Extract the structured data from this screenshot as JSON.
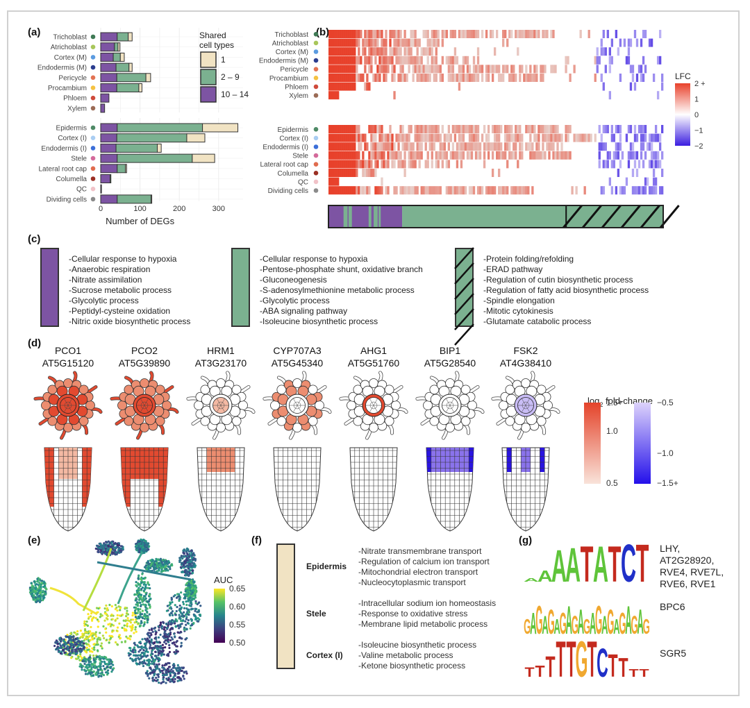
{
  "panel_labels": {
    "a": "(a)",
    "b": "(b)",
    "c": "(c)",
    "d": "(d)",
    "e": "(e)",
    "f": "(f)",
    "g": "(g)"
  },
  "chart_data": [
    {
      "id": "a",
      "type": "bar",
      "orientation": "horizontal",
      "stacked": true,
      "xlabel": "Number of DEGs",
      "xlim": [
        0,
        360
      ],
      "xticks": [
        0,
        100,
        200,
        300
      ],
      "grid": true,
      "legend": {
        "title": "Shared cell types",
        "position": "top-right",
        "entries": [
          {
            "name": "1",
            "color": "#f1e3c3"
          },
          {
            "name": "2 – 9",
            "color": "#7bb190"
          },
          {
            "name": "10 – 14",
            "color": "#7d54a3"
          }
        ]
      },
      "groups": [
        {
          "name": "upper",
          "categories": [
            "Trichoblast",
            "Atrichoblast",
            "Cortex (M)",
            "Endodermis (M)",
            "Pericycle",
            "Procambium",
            "Phloem",
            "Xylem"
          ],
          "dot_colors": [
            "#3f7a55",
            "#a8c65a",
            "#5b9be0",
            "#2b3d8f",
            "#e27353",
            "#f5c242",
            "#cf4a3b",
            "#9b6b55"
          ],
          "series": [
            {
              "name": "10 – 14",
              "values": [
                42,
                35,
                32,
                39,
                41,
                41,
                21,
                10
              ]
            },
            {
              "name": "2 – 9",
              "values": [
                28,
                9,
                18,
                33,
                74,
                56,
                0,
                0
              ]
            },
            {
              "name": "1",
              "values": [
                10,
                5,
                10,
                8,
                12,
                8,
                0,
                0
              ]
            }
          ]
        },
        {
          "name": "lower",
          "categories": [
            "Epidermis",
            "Cortex (I)",
            "Endodermis (I)",
            "Stele",
            "Lateral root cap",
            "Columella",
            "QC",
            "Dividing cells"
          ],
          "dot_colors": [
            "#4e8a66",
            "#a9cdf2",
            "#3c6fd8",
            "#d46a9b",
            "#e06c4e",
            "#9b2f24",
            "#f1c2c8",
            "#8a8a8a"
          ],
          "series": [
            {
              "name": "10 – 14",
              "values": [
                42,
                41,
                39,
                42,
                42,
                24,
                2,
                42
              ]
            },
            {
              "name": "2 – 9",
              "values": [
                217,
                178,
                105,
                191,
                21,
                2,
                0,
                86
              ]
            },
            {
              "name": "1",
              "values": [
                90,
                46,
                10,
                57,
                3,
                0,
                0,
                2
              ]
            }
          ]
        }
      ]
    },
    {
      "id": "b",
      "type": "heatmap",
      "legend": {
        "title": "LFC",
        "position": "right",
        "ticks": [
          "2 +",
          "1",
          "0",
          "−1",
          "−2"
        ],
        "range": [
          -2,
          2
        ],
        "colors": {
          "high": "#e8412b",
          "mid": "#ffffff",
          "low": "#3b1ee0"
        }
      },
      "rows_upper": [
        "Trichoblast",
        "Atrichoblast",
        "Cortex (M)",
        "Endodermis (M)",
        "Pericycle",
        "Procambium",
        "Phloem",
        "Xylem"
      ],
      "rows_lower": [
        "Epidermis",
        "Cortex (I)",
        "Endodermis (I)",
        "Stele",
        "Lateral root cap",
        "Columella",
        "QC",
        "Dividing cells"
      ],
      "annotation_bar": [
        {
          "category": "10 – 14",
          "fraction": 0.22,
          "color": "#7d54a3"
        },
        {
          "category": "2 – 9",
          "fraction": 0.49,
          "color": "#7bb190"
        },
        {
          "category": "2 – 9 (hatched)",
          "fraction": 0.29,
          "color": "#7bb190"
        }
      ],
      "column_profile_upper_red_extent": [
        0.68,
        0.32,
        0.32,
        0.45,
        0.68,
        0.64,
        0.13,
        0.03
      ],
      "column_profile_lower_red_extent": [
        0.72,
        0.8,
        0.7,
        0.72,
        0.4,
        0.15,
        0.03,
        0.6
      ],
      "column_profile_blue_start": 0.8
    },
    {
      "id": "d",
      "type": "table",
      "legend": {
        "title": "log2 fold-change",
        "position": "right",
        "red": {
          "ticks": [
            "1.5+",
            "1.0",
            "0.5"
          ],
          "range": [
            0.5,
            1.5
          ]
        },
        "blue": {
          "ticks": [
            "−0.5",
            "−1.0",
            "−1.5+"
          ],
          "range": [
            -1.5,
            -0.5
          ]
        }
      }
    },
    {
      "id": "e",
      "type": "scatter",
      "legend": {
        "title": "AUC",
        "position": "right",
        "ticks": [
          "0.65",
          "0.60",
          "0.55",
          "0.50"
        ],
        "range": [
          0.5,
          0.65
        ]
      }
    }
  ],
  "panel_c": {
    "groups": [
      {
        "swatch": "purple",
        "color": "#7d54a3",
        "hatched": false,
        "terms": [
          "-Cellular response to hypoxia",
          "-Anaerobic respiration",
          "-Nitrate assimilation",
          "-Sucrose metabolic process",
          "-Glycolytic process",
          "-Peptidyl-cysteine oxidation",
          "-Nitric oxide biosynthetic process"
        ]
      },
      {
        "swatch": "green",
        "color": "#7bb190",
        "hatched": false,
        "terms": [
          "-Cellular response to hypoxia",
          "-Pentose-phosphate shunt, oxidative branch",
          "-Gluconeogenesis",
          "-S-adenosylmethionine metabolic process",
          "-Glycolytic process",
          "-ABA signaling pathway",
          "-Isoleucine biosynthetic process"
        ]
      },
      {
        "swatch": "green-hatched",
        "color": "#7bb190",
        "hatched": true,
        "terms": [
          "-Protein folding/refolding",
          "-ERAD pathway",
          "-Regulation of cutin biosynthetic process",
          "-Regulation of fatty acid biosynthetic process",
          "-Spindle elongation",
          "-Mitotic cytokinesis",
          "-Glutamate catabolic process"
        ]
      }
    ]
  },
  "panel_d": {
    "genes": [
      {
        "name": "PCO1",
        "locus": "AT5G15120",
        "pattern": "red-strong"
      },
      {
        "name": "PCO2",
        "locus": "AT5G39890",
        "pattern": "red-all"
      },
      {
        "name": "HRM1",
        "locus": "AT3G23170",
        "pattern": "red-stele"
      },
      {
        "name": "CYP707A3",
        "locus": "AT5G45340",
        "pattern": "red-cortex"
      },
      {
        "name": "AHG1",
        "locus": "AT5G51760",
        "pattern": "red-endodermis"
      },
      {
        "name": "BIP1",
        "locus": "AT5G28540",
        "pattern": "blue-tip"
      },
      {
        "name": "FSK2",
        "locus": "AT4G38410",
        "pattern": "blue-stele"
      }
    ],
    "legend_title": "log",
    "legend_sub": "2",
    "legend_rest": " fold-change"
  },
  "panel_f": {
    "swatch_color": "#f1e3c3",
    "sections": [
      {
        "cell_type": "Epidermis",
        "terms": [
          "-Nitrate transmembrane transport",
          "-Regulation of calcium ion transport",
          "-Mitochondrial electron transport",
          "-Nucleocytoplasmic transport"
        ]
      },
      {
        "cell_type": "Stele",
        "terms": [
          "-Intracellular sodium ion homeostasis",
          "-Response to oxidative stress",
          "-Membrane lipid metabolic process"
        ]
      },
      {
        "cell_type": "Cortex (I)",
        "terms": [
          "-Isoleucine biosynthetic process",
          "-Valine metabolic process",
          "-Ketone biosynthetic process"
        ]
      }
    ]
  },
  "panel_g": {
    "motifs": [
      {
        "sequence": "AAAATATCT",
        "factors": [
          "LHY,",
          "AT2G28920,",
          "RVE4, RVE7L,",
          "RVE6, RVE1"
        ]
      },
      {
        "sequence": "GAGAGAGAGAGAGAGAGAGAG",
        "factors": [
          "BPC6"
        ]
      },
      {
        "sequence": "TTTTTGTCTTTT",
        "factors": [
          "SGR5"
        ]
      }
    ],
    "base_colors": {
      "A": "#5fc43a",
      "C": "#2030c8",
      "G": "#f0a830",
      "T": "#c42a1e"
    }
  }
}
